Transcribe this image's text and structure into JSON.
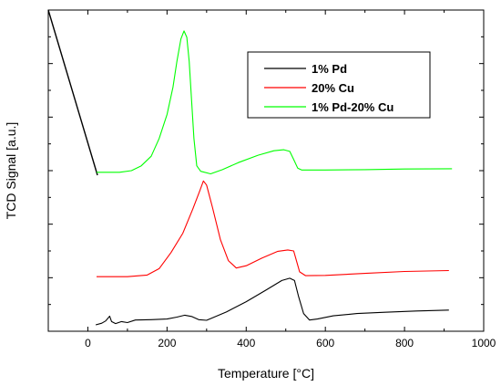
{
  "chart_data": {
    "type": "line",
    "title": "",
    "xlabel": "Temperature [",
    "xlabel_unit": "°C]",
    "ylabel": "TCD Signal [a.u.]",
    "xlim": [
      -100,
      1000
    ],
    "ylim": [
      0,
      100
    ],
    "x_ticks": [
      0,
      200,
      400,
      600,
      800,
      1000
    ],
    "y_ticks": "unlabeled",
    "grid": false,
    "legend_position": "top-right",
    "series": [
      {
        "name": "1% Pd",
        "color": "#000000",
        "points": [
          [
            20,
            2.0
          ],
          [
            35,
            2.5
          ],
          [
            45,
            3.2
          ],
          [
            55,
            4.7
          ],
          [
            60,
            3.0
          ],
          [
            70,
            2.4
          ],
          [
            85,
            3.0
          ],
          [
            100,
            2.7
          ],
          [
            120,
            3.5
          ],
          [
            160,
            3.6
          ],
          [
            200,
            3.8
          ],
          [
            225,
            4.4
          ],
          [
            245,
            5.0
          ],
          [
            262,
            4.6
          ],
          [
            280,
            3.6
          ],
          [
            300,
            3.4
          ],
          [
            350,
            6.0
          ],
          [
            400,
            9.2
          ],
          [
            450,
            12.8
          ],
          [
            490,
            15.8
          ],
          [
            510,
            16.5
          ],
          [
            522,
            15.8
          ],
          [
            532,
            11.0
          ],
          [
            545,
            5.5
          ],
          [
            560,
            3.5
          ],
          [
            580,
            3.8
          ],
          [
            620,
            4.8
          ],
          [
            680,
            5.5
          ],
          [
            750,
            5.9
          ],
          [
            830,
            6.3
          ],
          [
            912,
            6.6
          ]
        ]
      },
      {
        "name": "20% Cu",
        "color": "#ff0000",
        "points": [
          [
            22,
            17.0
          ],
          [
            100,
            17.0
          ],
          [
            150,
            17.5
          ],
          [
            180,
            19.5
          ],
          [
            210,
            24.5
          ],
          [
            240,
            30.5
          ],
          [
            265,
            38.0
          ],
          [
            282,
            43.5
          ],
          [
            292,
            46.8
          ],
          [
            300,
            45.5
          ],
          [
            315,
            38.5
          ],
          [
            335,
            28.5
          ],
          [
            355,
            22.0
          ],
          [
            375,
            19.7
          ],
          [
            400,
            20.4
          ],
          [
            440,
            22.8
          ],
          [
            480,
            24.9
          ],
          [
            505,
            25.3
          ],
          [
            520,
            25.0
          ],
          [
            528,
            21.5
          ],
          [
            535,
            18.5
          ],
          [
            550,
            17.3
          ],
          [
            600,
            17.4
          ],
          [
            700,
            18.0
          ],
          [
            800,
            18.6
          ],
          [
            912,
            18.9
          ]
        ]
      },
      {
        "name": "1% Pd-20% Cu",
        "color": "#00ff00",
        "points": [
          [
            22,
            49.5
          ],
          [
            80,
            49.5
          ],
          [
            110,
            50.0
          ],
          [
            135,
            51.5
          ],
          [
            160,
            54.5
          ],
          [
            180,
            60.0
          ],
          [
            200,
            67.5
          ],
          [
            215,
            76.0
          ],
          [
            225,
            84.0
          ],
          [
            235,
            91.0
          ],
          [
            243,
            93.5
          ],
          [
            250,
            91.5
          ],
          [
            256,
            84.0
          ],
          [
            262,
            72.0
          ],
          [
            268,
            60.0
          ],
          [
            275,
            51.5
          ],
          [
            285,
            49.8
          ],
          [
            310,
            49.0
          ],
          [
            340,
            50.3
          ],
          [
            380,
            52.5
          ],
          [
            430,
            54.8
          ],
          [
            470,
            56.2
          ],
          [
            495,
            56.5
          ],
          [
            510,
            56.0
          ],
          [
            520,
            53.5
          ],
          [
            530,
            50.8
          ],
          [
            540,
            50.2
          ],
          [
            600,
            50.2
          ],
          [
            700,
            50.3
          ],
          [
            800,
            50.5
          ],
          [
            920,
            50.6
          ]
        ]
      }
    ]
  }
}
